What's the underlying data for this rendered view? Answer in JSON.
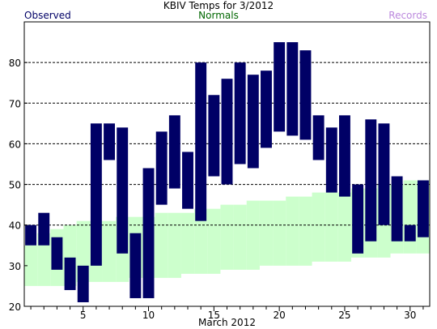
{
  "title": "KBIV Temps for 3/2012",
  "legend": {
    "observed": {
      "label": "Observed",
      "color": "#000066"
    },
    "normals": {
      "label": "Normals",
      "color": "#006600"
    },
    "records": {
      "label": "Records",
      "color": "#bb88dd"
    }
  },
  "chart_data": {
    "type": "bar",
    "title": "KBIV Temps for 3/2012",
    "xlabel": "March 2012",
    "ylabel": "",
    "xlim": [
      0.5,
      31.5
    ],
    "ylim": [
      20,
      90
    ],
    "x_ticks": [
      5,
      10,
      15,
      20,
      25,
      30
    ],
    "y_ticks": [
      20,
      30,
      40,
      50,
      60,
      70,
      80
    ],
    "gridlines_at": [
      40,
      50,
      60,
      70,
      80
    ],
    "grid": true,
    "series": [
      {
        "name": "Observed",
        "color": "#000066",
        "days": [
          1,
          2,
          3,
          4,
          5,
          6,
          7,
          8,
          9,
          10,
          11,
          12,
          13,
          14,
          15,
          16,
          17,
          18,
          19,
          20,
          21,
          22,
          23,
          24,
          25,
          26,
          27,
          28,
          29,
          30,
          31
        ],
        "low": [
          35,
          35,
          29,
          24,
          21,
          30,
          56,
          33,
          22,
          22,
          45,
          49,
          44,
          41,
          52,
          50,
          55,
          54,
          59,
          63,
          62,
          61,
          56,
          48,
          47,
          33,
          36,
          40,
          36,
          36,
          37
        ],
        "high": [
          40,
          43,
          37,
          32,
          30,
          65,
          65,
          64,
          38,
          54,
          63,
          67,
          58,
          80,
          72,
          76,
          80,
          77,
          78,
          85,
          85,
          83,
          67,
          64,
          67,
          50,
          66,
          65,
          52,
          40,
          51
        ]
      },
      {
        "name": "Normals",
        "color": "#ccffcc",
        "days": [
          1,
          2,
          3,
          4,
          5,
          6,
          7,
          8,
          9,
          10,
          11,
          12,
          13,
          14,
          15,
          16,
          17,
          18,
          19,
          20,
          21,
          22,
          23,
          24,
          25,
          26,
          27,
          28,
          29,
          30,
          31
        ],
        "low": [
          25,
          25,
          25,
          25,
          26,
          26,
          26,
          26,
          27,
          27,
          27,
          27,
          28,
          28,
          28,
          29,
          29,
          29,
          30,
          30,
          30,
          30,
          31,
          31,
          31,
          32,
          32,
          32,
          33,
          33,
          33
        ],
        "high": [
          35,
          38,
          39,
          40,
          41,
          41,
          41,
          42,
          42,
          42,
          43,
          43,
          43,
          44,
          44,
          45,
          45,
          46,
          46,
          46,
          47,
          47,
          48,
          48,
          48,
          49,
          49,
          50,
          50,
          51,
          51
        ]
      }
    ]
  }
}
